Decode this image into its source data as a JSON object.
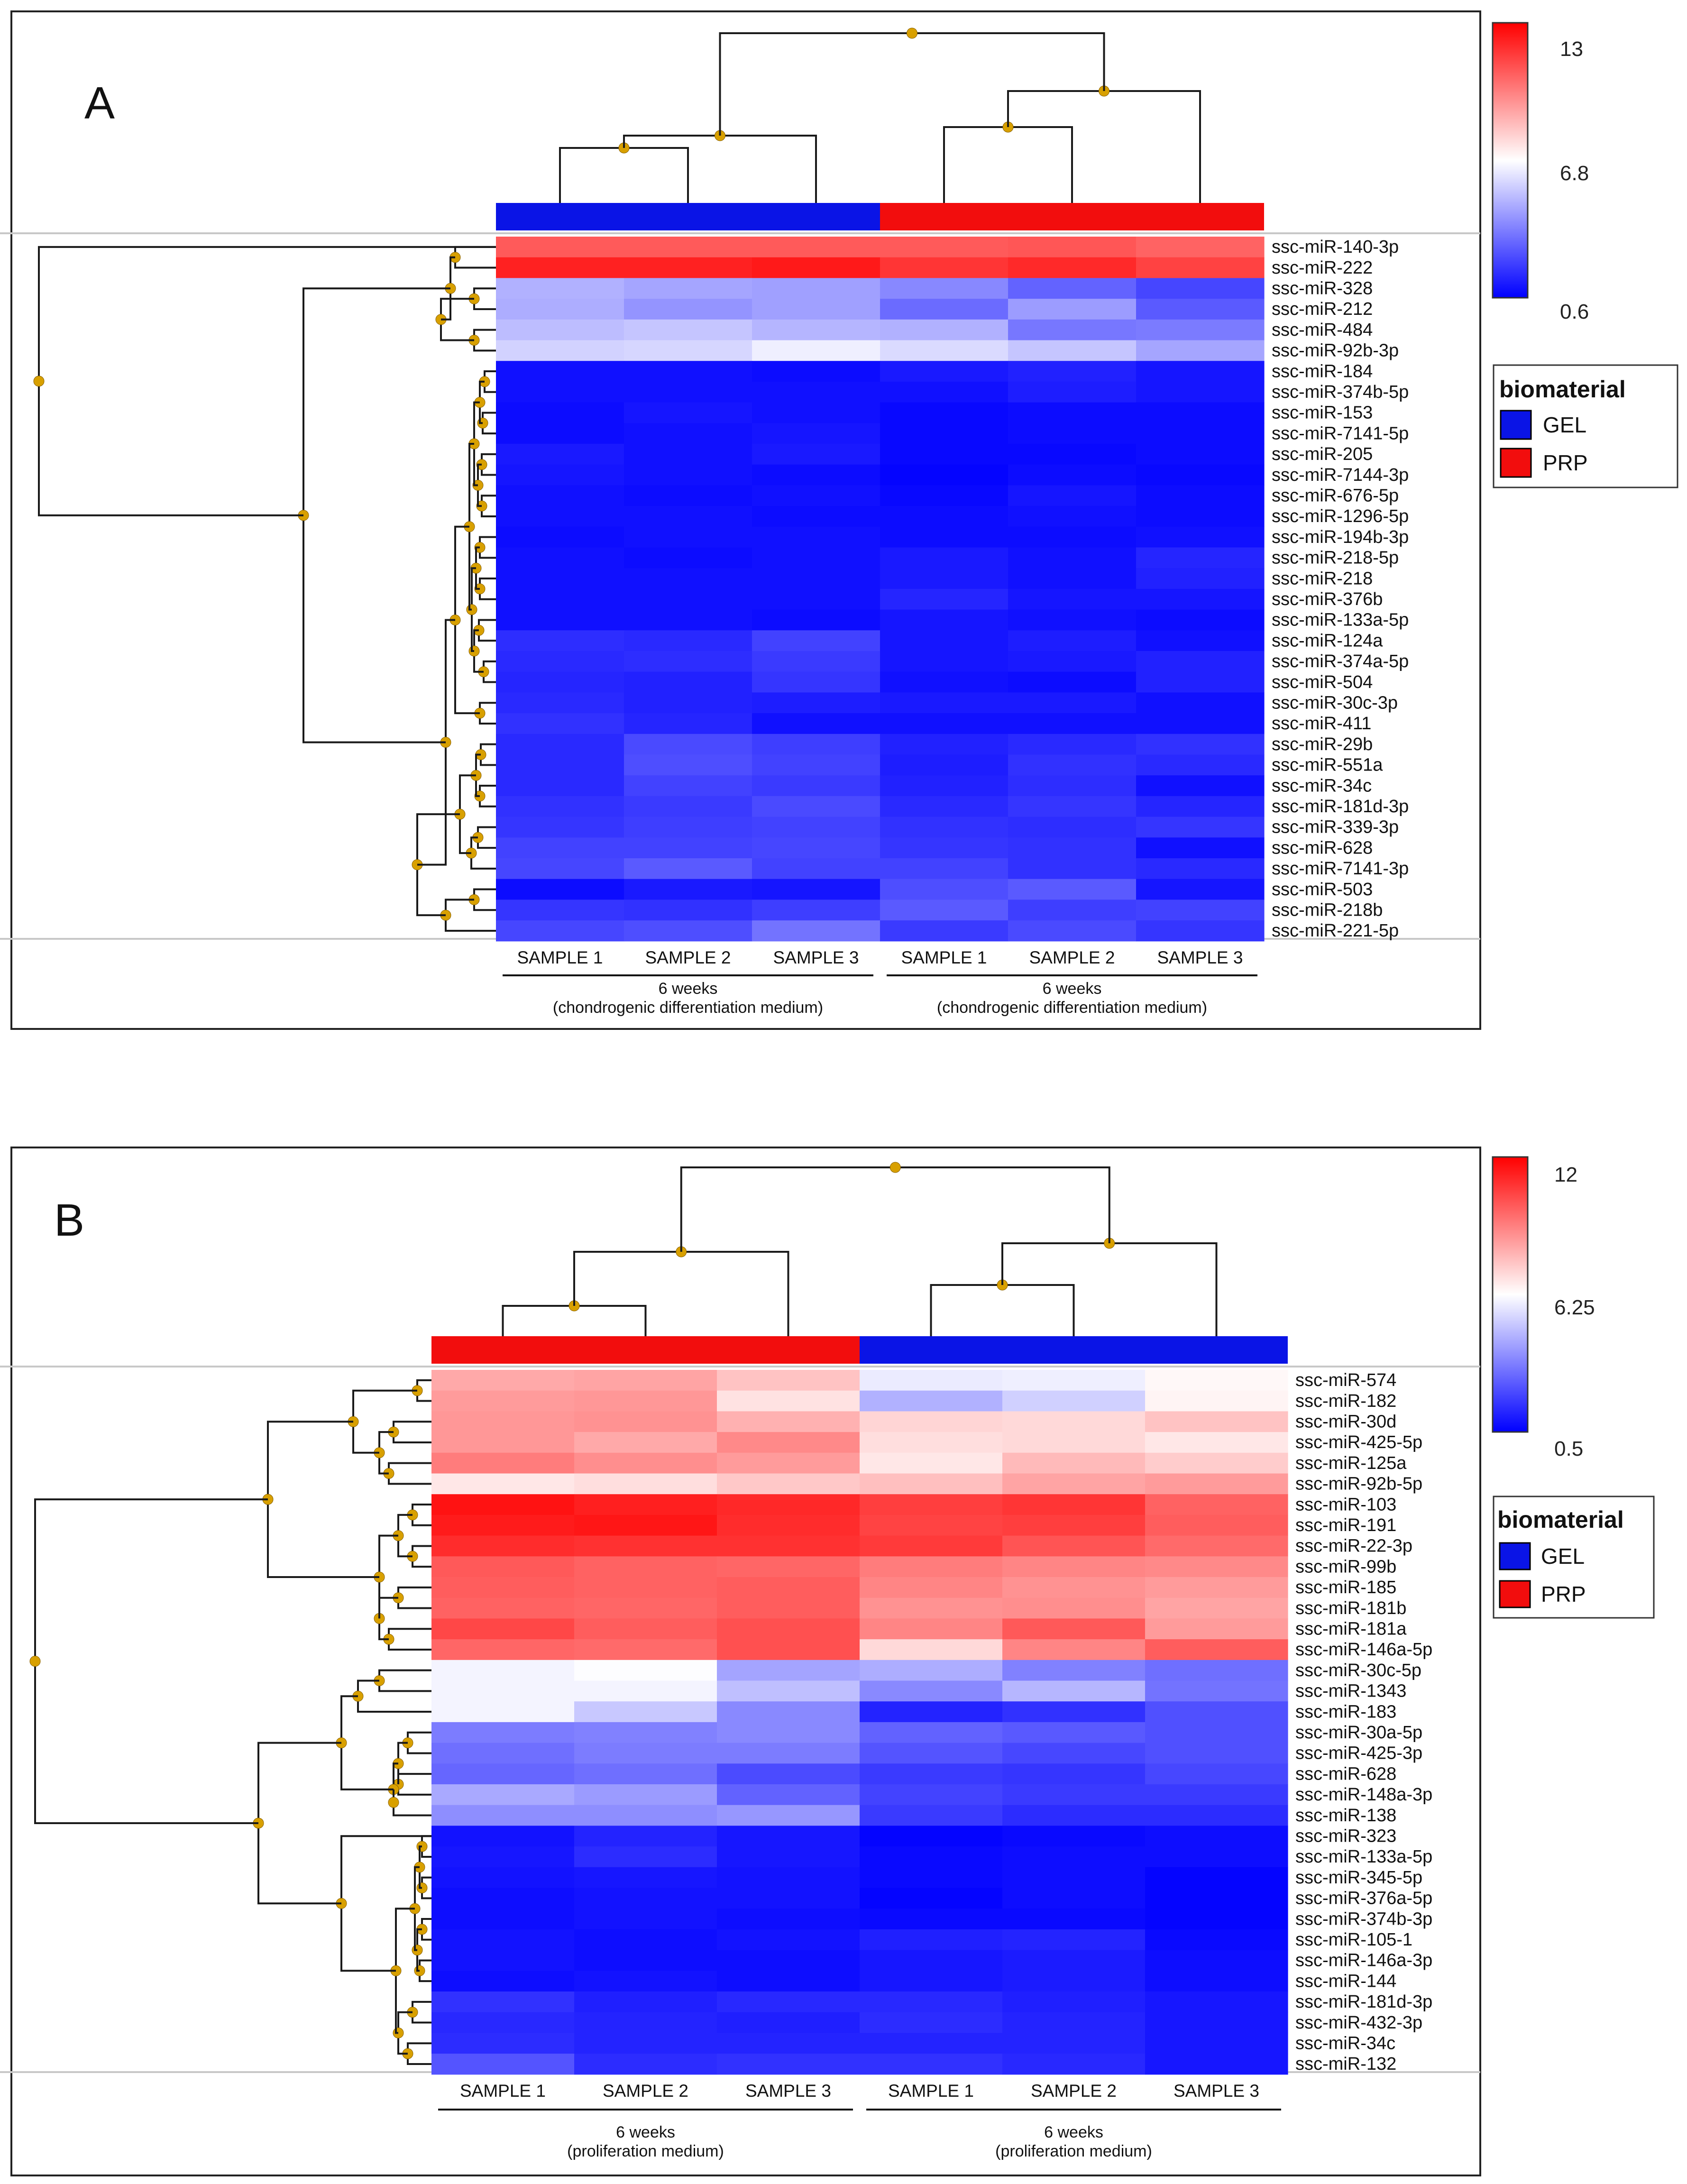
{
  "figure": {
    "legend": {
      "title": "biomaterial",
      "items": [
        {
          "label": "GEL",
          "color": "#0a14e6"
        },
        {
          "label": "PRP",
          "color": "#f20d0d"
        }
      ]
    }
  },
  "colors": {
    "low": "#0000ff",
    "mid": "#ffffff",
    "high": "#ff0000"
  },
  "chart_data": [
    {
      "type": "heatmap",
      "panel_label": "A",
      "color_scale": {
        "min": 0.6,
        "mid": 6.8,
        "max": 13,
        "labels": [
          "13",
          "6.8",
          "0.6"
        ]
      },
      "columns": [
        "SAMPLE 1",
        "SAMPLE 2",
        "SAMPLE 3",
        "SAMPLE 1",
        "SAMPLE 2",
        "SAMPLE 3"
      ],
      "column_groups": [
        {
          "biomaterial": "GEL",
          "line1": "6 weeks",
          "line2": "(chondrogenic differentiation medium)"
        },
        {
          "biomaterial": "PRP",
          "line1": "6 weeks",
          "line2": "(chondrogenic differentiation medium)"
        }
      ],
      "rows": [
        "ssc-miR-140-3p",
        "ssc-miR-222",
        "ssc-miR-328",
        "ssc-miR-212",
        "ssc-miR-484",
        "ssc-miR-92b-3p",
        "ssc-miR-184",
        "ssc-miR-374b-5p",
        "ssc-miR-153",
        "ssc-miR-7141-5p",
        "ssc-miR-205",
        "ssc-miR-7144-3p",
        "ssc-miR-676-5p",
        "ssc-miR-1296-5p",
        "ssc-miR-194b-3p",
        "ssc-miR-218-5p",
        "ssc-miR-218",
        "ssc-miR-376b",
        "ssc-miR-133a-5p",
        "ssc-miR-124a",
        "ssc-miR-374a-5p",
        "ssc-miR-504",
        "ssc-miR-30c-3p",
        "ssc-miR-411",
        "ssc-miR-29b",
        "ssc-miR-551a",
        "ssc-miR-34c",
        "ssc-miR-181d-3p",
        "ssc-miR-339-3p",
        "ssc-miR-628",
        "ssc-miR-7141-3p",
        "ssc-miR-503",
        "ssc-miR-218b",
        "ssc-miR-221-5p"
      ],
      "values": [
        [
          10.8,
          10.8,
          10.8,
          10.8,
          10.9,
          10.6
        ],
        [
          12.2,
          12.2,
          12.4,
          11.7,
          12.0,
          11.4
        ],
        [
          4.9,
          4.6,
          4.5,
          3.9,
          3.0,
          2.3
        ],
        [
          4.8,
          4.2,
          4.5,
          3.2,
          4.4,
          2.8
        ],
        [
          5.2,
          5.4,
          5.0,
          4.9,
          3.5,
          3.6
        ],
        [
          5.7,
          5.8,
          6.4,
          5.9,
          5.4,
          4.6
        ],
        [
          1.0,
          1.0,
          0.9,
          1.2,
          1.4,
          1.1
        ],
        [
          1.0,
          1.0,
          1.0,
          1.0,
          1.3,
          1.1
        ],
        [
          0.9,
          1.1,
          1.0,
          0.8,
          0.9,
          0.9
        ],
        [
          0.9,
          1.0,
          1.1,
          0.8,
          0.9,
          0.9
        ],
        [
          1.2,
          1.0,
          1.2,
          0.8,
          0.8,
          0.9
        ],
        [
          1.1,
          1.0,
          0.9,
          0.7,
          0.9,
          0.8
        ],
        [
          1.0,
          0.9,
          1.0,
          0.8,
          1.1,
          0.9
        ],
        [
          1.0,
          1.0,
          0.9,
          0.9,
          1.0,
          0.9
        ],
        [
          0.9,
          1.0,
          1.0,
          0.9,
          0.9,
          1.0
        ],
        [
          1.0,
          0.9,
          1.0,
          1.2,
          1.0,
          1.5
        ],
        [
          1.0,
          1.0,
          1.0,
          1.2,
          1.0,
          1.4
        ],
        [
          1.0,
          1.0,
          1.0,
          1.5,
          1.1,
          1.1
        ],
        [
          1.0,
          1.0,
          0.9,
          1.1,
          1.0,
          0.9
        ],
        [
          1.7,
          1.6,
          2.2,
          1.1,
          1.3,
          1.0
        ],
        [
          1.6,
          1.7,
          2.0,
          1.1,
          1.2,
          1.4
        ],
        [
          1.5,
          1.4,
          1.9,
          1.0,
          0.9,
          1.4
        ],
        [
          1.6,
          1.4,
          1.3,
          1.2,
          1.2,
          1.0
        ],
        [
          1.8,
          1.5,
          1.0,
          1.0,
          1.0,
          1.0
        ],
        [
          1.6,
          2.4,
          2.1,
          1.4,
          1.6,
          1.8
        ],
        [
          1.6,
          2.5,
          2.2,
          1.3,
          1.8,
          1.6
        ],
        [
          1.6,
          2.2,
          2.0,
          1.4,
          1.7,
          1.0
        ],
        [
          1.8,
          2.0,
          2.4,
          1.6,
          1.9,
          1.5
        ],
        [
          1.9,
          2.1,
          2.2,
          1.8,
          1.7,
          1.9
        ],
        [
          2.2,
          2.2,
          2.3,
          1.9,
          1.8,
          1.0
        ],
        [
          2.3,
          2.8,
          2.2,
          2.2,
          1.8,
          1.6
        ],
        [
          0.9,
          1.2,
          1.1,
          2.5,
          2.8,
          1.1
        ],
        [
          1.9,
          1.8,
          2.1,
          2.8,
          2.1,
          2.2
        ],
        [
          2.3,
          2.5,
          3.4,
          2.0,
          2.4,
          1.9
        ]
      ]
    },
    {
      "type": "heatmap",
      "panel_label": "B",
      "color_scale": {
        "min": 0.5,
        "mid": 6.25,
        "max": 12,
        "labels": [
          "12",
          "6.25",
          "0.5"
        ]
      },
      "columns": [
        "SAMPLE 1",
        "SAMPLE 2",
        "SAMPLE 3",
        "SAMPLE 1",
        "SAMPLE 2",
        "SAMPLE 3"
      ],
      "column_groups": [
        {
          "biomaterial": "PRP",
          "line1": "6 weeks",
          "line2": "(proliferation medium)"
        },
        {
          "biomaterial": "GEL",
          "line1": "6 weeks",
          "line2": "(proliferation medium)"
        }
      ],
      "rows": [
        "ssc-miR-574",
        "ssc-miR-182",
        "ssc-miR-30d",
        "ssc-miR-425-5p",
        "ssc-miR-125a",
        "ssc-miR-92b-5p",
        "ssc-miR-103",
        "ssc-miR-191",
        "ssc-miR-22-3p",
        "ssc-miR-99b",
        "ssc-miR-185",
        "ssc-miR-181b",
        "ssc-miR-181a",
        "ssc-miR-146a-5p",
        "ssc-miR-30c-5p",
        "ssc-miR-1343",
        "ssc-miR-183",
        "ssc-miR-30a-5p",
        "ssc-miR-425-3p",
        "ssc-miR-628",
        "ssc-miR-148a-3p",
        "ssc-miR-138",
        "ssc-miR-323",
        "ssc-miR-133a-5p",
        "ssc-miR-345-5p",
        "ssc-miR-376a-5p",
        "ssc-miR-374b-3p",
        "ssc-miR-105-1",
        "ssc-miR-146a-3p",
        "ssc-miR-144",
        "ssc-miR-181d-3p",
        "ssc-miR-432-3p",
        "ssc-miR-34c",
        "ssc-miR-132"
      ],
      "values": [
        [
          8.2,
          8.3,
          7.6,
          5.8,
          5.9,
          6.4
        ],
        [
          8.5,
          8.6,
          6.9,
          4.5,
          5.2,
          6.5
        ],
        [
          8.6,
          8.7,
          8.0,
          7.2,
          7.1,
          7.6
        ],
        [
          8.6,
          8.2,
          8.9,
          7.0,
          7.1,
          6.8
        ],
        [
          9.2,
          8.8,
          8.5,
          6.8,
          7.8,
          7.4
        ],
        [
          6.8,
          7.0,
          7.5,
          7.7,
          8.3,
          8.5
        ],
        [
          11.6,
          11.3,
          11.1,
          10.6,
          10.8,
          9.8
        ],
        [
          11.4,
          11.5,
          11.0,
          10.5,
          10.6,
          9.9
        ],
        [
          11.0,
          10.9,
          10.9,
          10.7,
          10.1,
          9.6
        ],
        [
          10.0,
          9.8,
          9.7,
          9.2,
          9.0,
          8.9
        ],
        [
          9.9,
          9.8,
          9.9,
          9.0,
          8.7,
          8.5
        ],
        [
          9.8,
          9.7,
          9.9,
          8.7,
          8.8,
          8.3
        ],
        [
          10.4,
          9.9,
          10.2,
          9.0,
          10.0,
          8.5
        ],
        [
          9.7,
          9.6,
          10.2,
          7.1,
          9.0,
          9.9
        ],
        [
          6.0,
          6.2,
          4.2,
          4.4,
          3.4,
          3.0
        ],
        [
          6.0,
          6.0,
          4.8,
          3.6,
          4.6,
          3.1
        ],
        [
          6.0,
          5.0,
          3.6,
          1.3,
          1.6,
          2.3
        ],
        [
          3.3,
          3.4,
          3.6,
          2.7,
          2.5,
          2.3
        ],
        [
          3.0,
          3.3,
          3.3,
          2.4,
          2.1,
          2.3
        ],
        [
          2.8,
          3.0,
          2.2,
          1.8,
          1.7,
          2.1
        ],
        [
          4.3,
          4.0,
          2.7,
          2.0,
          1.8,
          1.8
        ],
        [
          3.7,
          3.7,
          3.9,
          1.8,
          1.5,
          1.5
        ],
        [
          0.9,
          1.3,
          1.0,
          0.6,
          0.7,
          0.8
        ],
        [
          1.0,
          1.5,
          1.0,
          0.7,
          0.8,
          0.8
        ],
        [
          0.9,
          1.0,
          0.9,
          0.7,
          0.8,
          0.6
        ],
        [
          0.8,
          0.9,
          0.9,
          0.6,
          0.8,
          0.6
        ],
        [
          0.8,
          0.9,
          0.8,
          0.7,
          0.7,
          0.6
        ],
        [
          0.9,
          0.8,
          0.9,
          1.2,
          1.3,
          0.7
        ],
        [
          0.9,
          0.8,
          0.8,
          1.0,
          1.1,
          0.8
        ],
        [
          0.8,
          0.9,
          0.8,
          1.0,
          1.1,
          0.8
        ],
        [
          1.6,
          1.2,
          1.4,
          1.4,
          1.2,
          1.0
        ],
        [
          1.4,
          1.3,
          1.2,
          1.5,
          1.3,
          1.0
        ],
        [
          1.5,
          1.3,
          1.3,
          1.3,
          1.3,
          1.0
        ],
        [
          2.4,
          1.5,
          1.6,
          1.6,
          1.4,
          1.0
        ]
      ]
    }
  ]
}
